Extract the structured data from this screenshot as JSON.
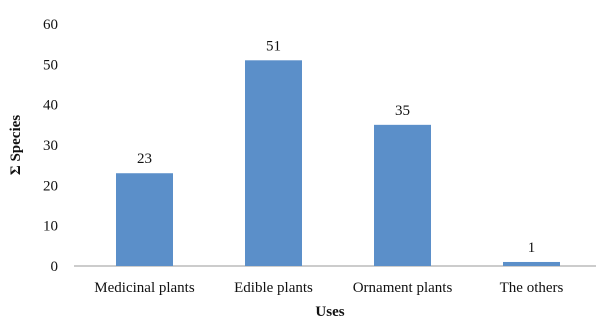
{
  "chart_data": {
    "type": "bar",
    "title": "",
    "xlabel": "Uses",
    "ylabel": "Σ Species",
    "categories": [
      "Medicinal plants",
      "Edible plants",
      "Ornament plants",
      "The others"
    ],
    "values": [
      23,
      51,
      35,
      1
    ],
    "ylim": [
      0,
      60
    ],
    "yticks": [
      0,
      10,
      20,
      30,
      40,
      50,
      60
    ],
    "bar_color": "#5b8fc9",
    "grid": false,
    "legend": false
  }
}
